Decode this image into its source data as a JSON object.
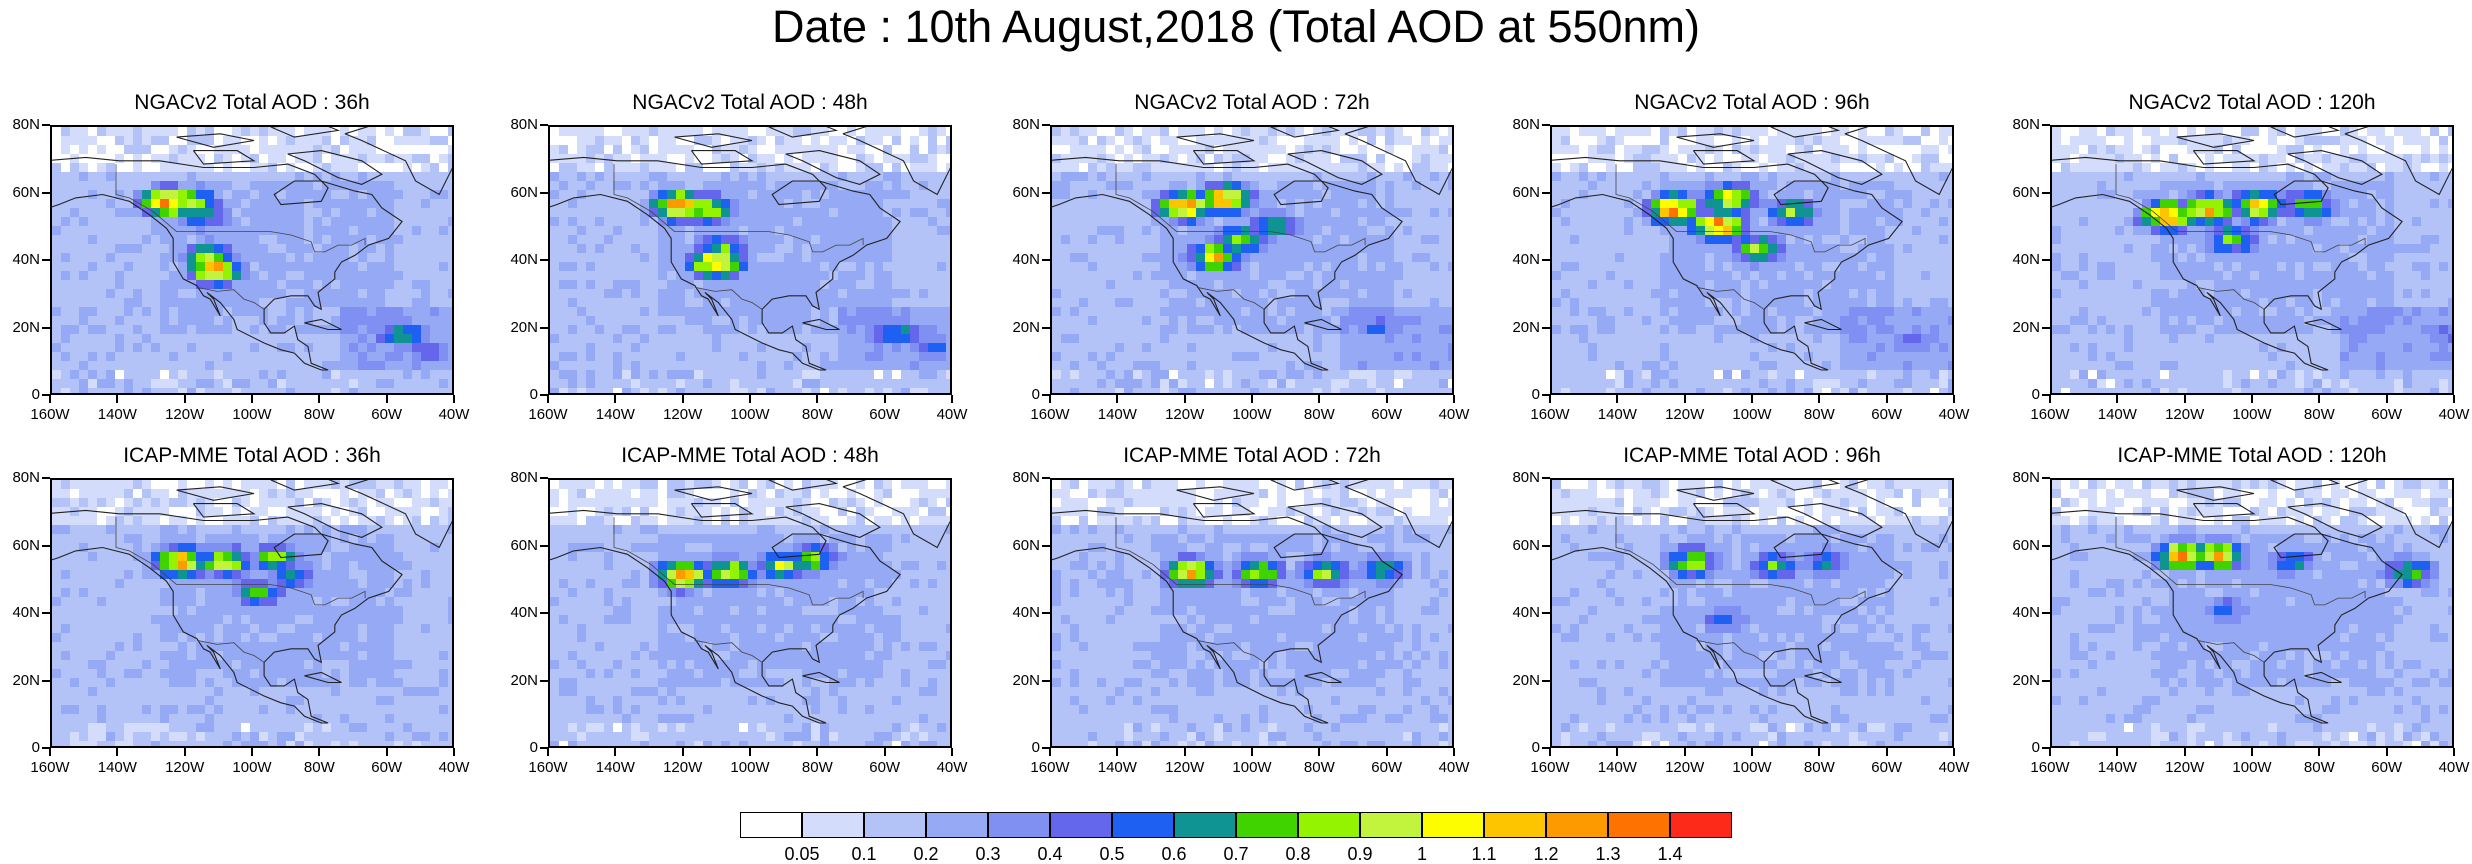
{
  "title": "Date : 10th August,2018 (Total AOD at 550nm)",
  "y_ticks": [
    "80N",
    "60N",
    "40N",
    "20N",
    "0"
  ],
  "x_ticks": [
    "160W",
    "140W",
    "120W",
    "100W",
    "80W",
    "60W",
    "40W"
  ],
  "panels": [
    {
      "title": "NGACv2 Total AOD : 36h",
      "model": "NGACv2",
      "hour": 36,
      "plumes": [
        {
          "lon": -127,
          "lat": 59,
          "aod": 1.4
        },
        {
          "lon": -120,
          "lat": 59,
          "aod": 1.0
        },
        {
          "lon": -117,
          "lat": 55,
          "aod": 0.8
        },
        {
          "lon": -113,
          "lat": 39,
          "aod": 1.3
        },
        {
          "lon": -115,
          "lat": 43,
          "aod": 0.9
        },
        {
          "lon": -57,
          "lat": 20,
          "aod": 0.8
        },
        {
          "lon": -50,
          "lat": 15,
          "aod": 0.6
        }
      ]
    },
    {
      "title": "NGACv2 Total AOD : 48h",
      "model": "NGACv2",
      "hour": 48,
      "plumes": [
        {
          "lon": -123,
          "lat": 58,
          "aod": 1.4
        },
        {
          "lon": -115,
          "lat": 57,
          "aod": 1.1
        },
        {
          "lon": -112,
          "lat": 41,
          "aod": 1.3
        },
        {
          "lon": -110,
          "lat": 45,
          "aod": 0.9
        },
        {
          "lon": -58,
          "lat": 20,
          "aod": 0.8
        },
        {
          "lon": -48,
          "lat": 16,
          "aod": 0.6
        }
      ]
    },
    {
      "title": "NGACv2 Total AOD : 72h",
      "model": "NGACv2",
      "hour": 72,
      "plumes": [
        {
          "lon": -122,
          "lat": 58,
          "aod": 1.4
        },
        {
          "lon": -110,
          "lat": 60,
          "aod": 1.3
        },
        {
          "lon": -113,
          "lat": 43,
          "aod": 1.2
        },
        {
          "lon": -105,
          "lat": 48,
          "aod": 0.9
        },
        {
          "lon": -95,
          "lat": 52,
          "aod": 0.8
        },
        {
          "lon": -65,
          "lat": 22,
          "aod": 0.6
        }
      ]
    },
    {
      "title": "NGACv2 Total AOD : 96h",
      "model": "NGACv2",
      "hour": 96,
      "plumes": [
        {
          "lon": -125,
          "lat": 57,
          "aod": 1.4
        },
        {
          "lon": -112,
          "lat": 52,
          "aod": 1.4
        },
        {
          "lon": -108,
          "lat": 60,
          "aod": 1.2
        },
        {
          "lon": -100,
          "lat": 45,
          "aod": 1.0
        },
        {
          "lon": -90,
          "lat": 56,
          "aod": 0.9
        },
        {
          "lon": -55,
          "lat": 18,
          "aod": 0.5
        }
      ]
    },
    {
      "title": "NGACv2 Total AOD : 120h",
      "model": "NGACv2",
      "hour": 120,
      "plumes": [
        {
          "lon": -127,
          "lat": 55,
          "aod": 1.4
        },
        {
          "lon": -115,
          "lat": 57,
          "aod": 1.3
        },
        {
          "lon": -100,
          "lat": 58,
          "aod": 1.3
        },
        {
          "lon": -85,
          "lat": 58,
          "aod": 1.0
        },
        {
          "lon": -108,
          "lat": 48,
          "aod": 0.9
        },
        {
          "lon": -45,
          "lat": 20,
          "aod": 0.5
        }
      ]
    },
    {
      "title": "ICAP-MME Total AOD : 36h",
      "model": "ICAP-MME",
      "hour": 36,
      "plumes": [
        {
          "lon": -123,
          "lat": 57,
          "aod": 1.3
        },
        {
          "lon": -110,
          "lat": 57,
          "aod": 1.1
        },
        {
          "lon": -95,
          "lat": 58,
          "aod": 0.9
        },
        {
          "lon": -100,
          "lat": 48,
          "aod": 0.8
        },
        {
          "lon": -90,
          "lat": 53,
          "aod": 0.7
        }
      ]
    },
    {
      "title": "ICAP-MME Total AOD : 48h",
      "model": "ICAP-MME",
      "hour": 48,
      "plumes": [
        {
          "lon": -122,
          "lat": 53,
          "aod": 1.3
        },
        {
          "lon": -108,
          "lat": 54,
          "aod": 1.1
        },
        {
          "lon": -92,
          "lat": 56,
          "aod": 1.0
        },
        {
          "lon": -83,
          "lat": 58,
          "aod": 0.9
        }
      ]
    },
    {
      "title": "ICAP-MME Total AOD : 72h",
      "model": "ICAP-MME",
      "hour": 72,
      "plumes": [
        {
          "lon": -120,
          "lat": 54,
          "aod": 1.2
        },
        {
          "lon": -100,
          "lat": 54,
          "aod": 1.0
        },
        {
          "lon": -80,
          "lat": 54,
          "aod": 0.9
        },
        {
          "lon": -63,
          "lat": 55,
          "aod": 0.8
        }
      ]
    },
    {
      "title": "ICAP-MME Total AOD : 96h",
      "model": "ICAP-MME",
      "hour": 96,
      "plumes": [
        {
          "lon": -120,
          "lat": 57,
          "aod": 1.0
        },
        {
          "lon": -95,
          "lat": 56,
          "aod": 0.8
        },
        {
          "lon": -80,
          "lat": 57,
          "aod": 0.7
        },
        {
          "lon": -110,
          "lat": 40,
          "aod": 0.6
        }
      ]
    },
    {
      "title": "ICAP-MME Total AOD : 120h",
      "model": "ICAP-MME",
      "hour": 120,
      "plumes": [
        {
          "lon": -123,
          "lat": 59,
          "aod": 1.3
        },
        {
          "lon": -112,
          "lat": 59,
          "aod": 1.2
        },
        {
          "lon": -90,
          "lat": 57,
          "aod": 0.7
        },
        {
          "lon": -55,
          "lat": 54,
          "aod": 0.9
        },
        {
          "lon": -110,
          "lat": 43,
          "aod": 0.6
        }
      ]
    }
  ],
  "colorbar": {
    "labels": [
      "0.05",
      "0.1",
      "0.2",
      "0.3",
      "0.4",
      "0.5",
      "0.6",
      "0.7",
      "0.8",
      "0.9",
      "1",
      "1.1",
      "1.2",
      "1.3",
      "1.4"
    ],
    "colors": [
      "#ffffff",
      "#d3dcfa",
      "#b3c2f7",
      "#96a9f5",
      "#7f90f2",
      "#6466ec",
      "#1e60f2",
      "#0f9493",
      "#41d300",
      "#93f300",
      "#c2f43e",
      "#fdfd00",
      "#fdc500",
      "#fd9a00",
      "#fd7200",
      "#fd2a1a"
    ]
  },
  "chart_data": [
    {
      "type": "heatmap",
      "title": "NGACv2 Total AOD : 36h",
      "xlabel": "",
      "ylabel": "",
      "xlim": [
        -160,
        -40
      ],
      "ylim": [
        0,
        80
      ]
    },
    {
      "type": "heatmap",
      "title": "NGACv2 Total AOD : 48h",
      "xlabel": "",
      "ylabel": "",
      "xlim": [
        -160,
        -40
      ],
      "ylim": [
        0,
        80
      ]
    },
    {
      "type": "heatmap",
      "title": "NGACv2 Total AOD : 72h",
      "xlabel": "",
      "ylabel": "",
      "xlim": [
        -160,
        -40
      ],
      "ylim": [
        0,
        80
      ]
    },
    {
      "type": "heatmap",
      "title": "NGACv2 Total AOD : 96h",
      "xlabel": "",
      "ylabel": "",
      "xlim": [
        -160,
        -40
      ],
      "ylim": [
        0,
        80
      ]
    },
    {
      "type": "heatmap",
      "title": "NGACv2 Total AOD : 120h",
      "xlabel": "",
      "ylabel": "",
      "xlim": [
        -160,
        -40
      ],
      "ylim": [
        0,
        80
      ]
    },
    {
      "type": "heatmap",
      "title": "ICAP-MME Total AOD : 36h",
      "xlabel": "",
      "ylabel": "",
      "xlim": [
        -160,
        -40
      ],
      "ylim": [
        0,
        80
      ]
    },
    {
      "type": "heatmap",
      "title": "ICAP-MME Total AOD : 48h",
      "xlabel": "",
      "ylabel": "",
      "xlim": [
        -160,
        -40
      ],
      "ylim": [
        0,
        80
      ]
    },
    {
      "type": "heatmap",
      "title": "ICAP-MME Total AOD : 72h",
      "xlabel": "",
      "ylabel": "",
      "xlim": [
        -160,
        -40
      ],
      "ylim": [
        0,
        80
      ]
    },
    {
      "type": "heatmap",
      "title": "ICAP-MME Total AOD : 96h",
      "xlabel": "",
      "ylabel": "",
      "xlim": [
        -160,
        -40
      ],
      "ylim": [
        0,
        80
      ]
    },
    {
      "type": "heatmap",
      "title": "ICAP-MME Total AOD : 120h",
      "xlabel": "",
      "ylabel": "",
      "xlim": [
        -160,
        -40
      ],
      "ylim": [
        0,
        80
      ]
    }
  ]
}
